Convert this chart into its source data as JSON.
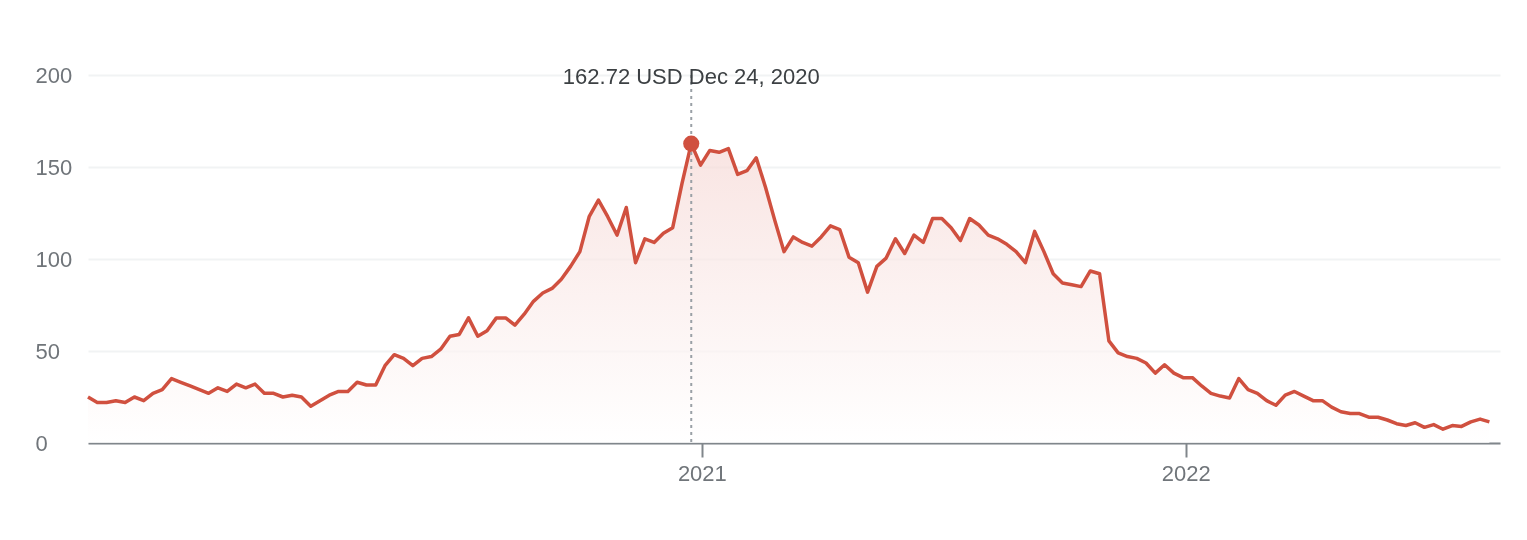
{
  "chart_data": {
    "type": "area",
    "x": [
      "2019-09-26",
      "2019-10-03",
      "2019-10-10",
      "2019-10-17",
      "2019-10-24",
      "2019-10-31",
      "2019-11-07",
      "2019-11-14",
      "2019-11-21",
      "2019-11-28",
      "2019-12-05",
      "2019-12-12",
      "2019-12-19",
      "2019-12-26",
      "2020-01-02",
      "2020-01-09",
      "2020-01-16",
      "2020-01-23",
      "2020-01-30",
      "2020-02-06",
      "2020-02-13",
      "2020-02-20",
      "2020-02-27",
      "2020-03-05",
      "2020-03-12",
      "2020-03-19",
      "2020-03-26",
      "2020-04-02",
      "2020-04-09",
      "2020-04-16",
      "2020-04-23",
      "2020-04-30",
      "2020-05-07",
      "2020-05-14",
      "2020-05-21",
      "2020-05-28",
      "2020-06-04",
      "2020-06-11",
      "2020-06-18",
      "2020-06-25",
      "2020-07-02",
      "2020-07-09",
      "2020-07-16",
      "2020-07-23",
      "2020-07-30",
      "2020-08-06",
      "2020-08-13",
      "2020-08-20",
      "2020-08-27",
      "2020-09-03",
      "2020-09-10",
      "2020-09-17",
      "2020-09-24",
      "2020-10-01",
      "2020-10-08",
      "2020-10-15",
      "2020-10-22",
      "2020-10-29",
      "2020-11-05",
      "2020-11-12",
      "2020-11-19",
      "2020-11-26",
      "2020-12-03",
      "2020-12-10",
      "2020-12-17",
      "2020-12-24",
      "2020-12-31",
      "2021-01-07",
      "2021-01-14",
      "2021-01-21",
      "2021-01-28",
      "2021-02-04",
      "2021-02-11",
      "2021-02-18",
      "2021-02-25",
      "2021-03-04",
      "2021-03-11",
      "2021-03-18",
      "2021-03-25",
      "2021-04-01",
      "2021-04-08",
      "2021-04-15",
      "2021-04-22",
      "2021-04-29",
      "2021-05-06",
      "2021-05-13",
      "2021-05-20",
      "2021-05-27",
      "2021-06-03",
      "2021-06-10",
      "2021-06-17",
      "2021-06-24",
      "2021-07-01",
      "2021-07-08",
      "2021-07-15",
      "2021-07-22",
      "2021-07-29",
      "2021-08-05",
      "2021-08-12",
      "2021-08-19",
      "2021-08-26",
      "2021-09-02",
      "2021-09-09",
      "2021-09-16",
      "2021-09-23",
      "2021-09-30",
      "2021-10-07",
      "2021-10-14",
      "2021-10-21",
      "2021-10-28",
      "2021-11-04",
      "2021-11-11",
      "2021-11-18",
      "2021-11-25",
      "2021-12-02",
      "2021-12-09",
      "2021-12-16",
      "2021-12-23",
      "2021-12-30",
      "2022-01-06",
      "2022-01-13",
      "2022-01-20",
      "2022-01-27",
      "2022-02-03",
      "2022-02-10",
      "2022-02-17",
      "2022-02-24",
      "2022-03-03",
      "2022-03-10",
      "2022-03-17",
      "2022-03-24",
      "2022-03-31",
      "2022-04-07",
      "2022-04-14",
      "2022-04-21",
      "2022-04-28",
      "2022-05-05",
      "2022-05-12",
      "2022-05-19",
      "2022-05-26",
      "2022-06-02",
      "2022-06-09",
      "2022-06-16",
      "2022-06-23",
      "2022-06-30",
      "2022-07-07",
      "2022-07-14",
      "2022-07-21",
      "2022-07-28",
      "2022-08-04",
      "2022-08-11",
      "2022-08-18"
    ],
    "series": [
      {
        "color": "#d0503f",
        "values": [
          25,
          22,
          22,
          23,
          22,
          25,
          23,
          27,
          29,
          35,
          33,
          31,
          29,
          27,
          30,
          28,
          32,
          30,
          32,
          27,
          27,
          25,
          26,
          25,
          20,
          23,
          26,
          28,
          28,
          33,
          31.5,
          31.5,
          42,
          48,
          46,
          42,
          46,
          47,
          51,
          58,
          59,
          68,
          58,
          61,
          68,
          68,
          64,
          70,
          77,
          81.5,
          84,
          89,
          96,
          104,
          123,
          132,
          123,
          113,
          128,
          98,
          111,
          109,
          114,
          117,
          141,
          162.72,
          151,
          159,
          158,
          160,
          146,
          148,
          155,
          139,
          121,
          104,
          112,
          109,
          107,
          112,
          118,
          116,
          101,
          98,
          82,
          96,
          100.5,
          111,
          103,
          113,
          109,
          122,
          122,
          117,
          110,
          122,
          118.5,
          113,
          111,
          108,
          104,
          98,
          115,
          104,
          92,
          87,
          86,
          85,
          93.5,
          92,
          55.5,
          49,
          47,
          46,
          43.5,
          38,
          42.5,
          38,
          35.5,
          35.5,
          31,
          27,
          25.5,
          24.5,
          35,
          29,
          27,
          23,
          20.5,
          26,
          28,
          25.5,
          23,
          23,
          19.5,
          17,
          16,
          16,
          14,
          14,
          12.5,
          10.5,
          9.5,
          11,
          8.5,
          10,
          7.5,
          9.5,
          9,
          11.5,
          13,
          11.5
        ]
      }
    ],
    "xlim": [
      "2019-09-26",
      "2022-08-26"
    ],
    "xticks": [
      {
        "value": "2021-01-01",
        "label": "2021"
      },
      {
        "value": "2022-01-01",
        "label": "2022"
      }
    ],
    "ylim": [
      0,
      200
    ],
    "yticks": [
      0,
      50,
      100,
      150,
      200
    ],
    "grid": "y",
    "ref_lines": [
      {
        "axis": "x",
        "value": "2020-12-24",
        "color": "#9aa0a6",
        "line_style": "dotted"
      }
    ],
    "annotations": [
      {
        "text": "162.72 USD  Dec 24, 2020",
        "x": "2020-12-24",
        "y": 162.72
      }
    ]
  }
}
